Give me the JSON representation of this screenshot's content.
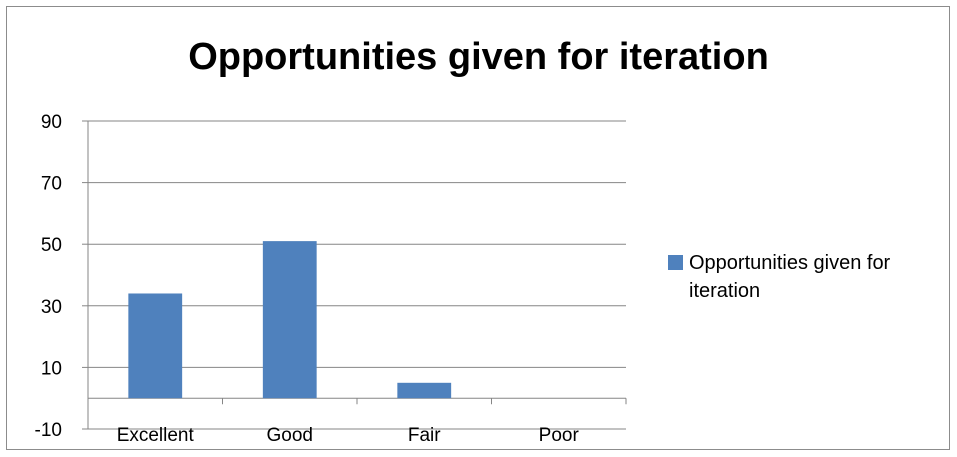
{
  "chart_data": {
    "type": "bar",
    "title": "Opportunities given for iteration",
    "categories": [
      "Excellent",
      "Good",
      "Fair",
      "Poor"
    ],
    "series": [
      {
        "name": "Opportunities given for iteration",
        "values": [
          34,
          51,
          5,
          0
        ],
        "color": "#4f81bd"
      }
    ],
    "ylim": [
      -10,
      90
    ],
    "yticks": [
      -10,
      10,
      30,
      50,
      70,
      90
    ],
    "grid": true,
    "legend_position": "right",
    "xlabel": "",
    "ylabel": ""
  }
}
